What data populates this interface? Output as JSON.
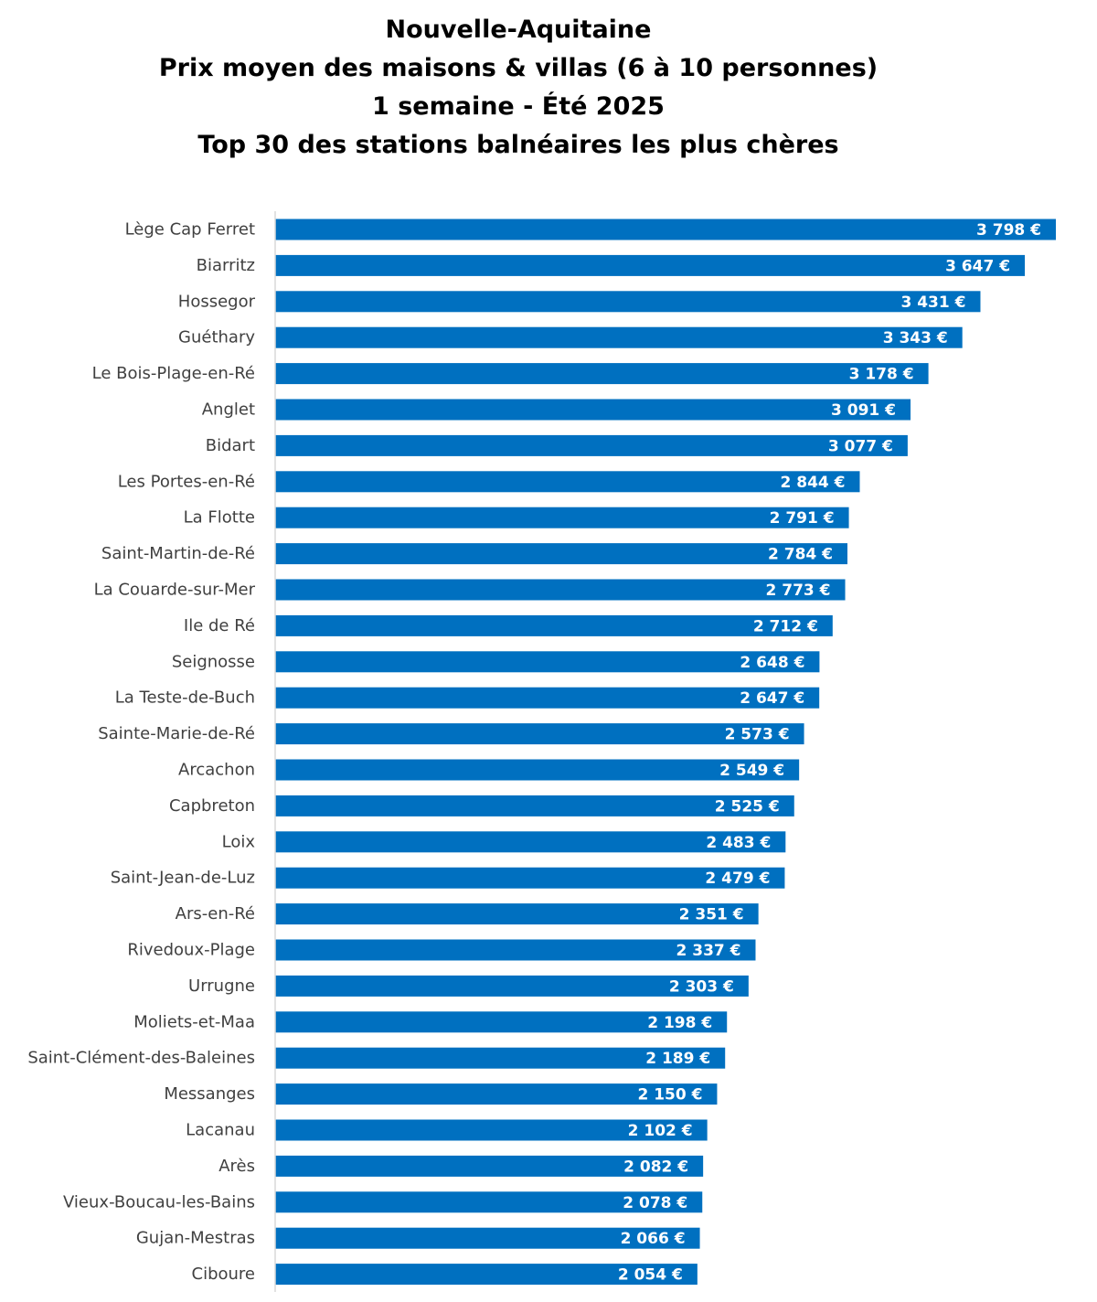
{
  "chart_data": {
    "type": "bar",
    "orientation": "horizontal",
    "title_lines": [
      "Nouvelle-Aquitaine",
      "Prix moyen des maisons & villas (6 à 10 personnes)",
      "1 semaine - Été 2025",
      "Top 30 des stations balnéaires les plus chères"
    ],
    "categories": [
      "Lège Cap Ferret",
      "Biarritz",
      "Hossegor",
      "Guéthary",
      "Le Bois-Plage-en-Ré",
      "Anglet",
      "Bidart",
      "Les Portes-en-Ré",
      "La Flotte",
      "Saint-Martin-de-Ré",
      "La Couarde-sur-Mer",
      "Ile de Ré",
      "Seignosse",
      "La Teste-de-Buch",
      "Sainte-Marie-de-Ré",
      "Arcachon",
      "Capbreton",
      "Loix",
      "Saint-Jean-de-Luz",
      "Ars-en-Ré",
      "Rivedoux-Plage",
      "Urrugne",
      "Moliets-et-Maa",
      "Saint-Clément-des-Baleines",
      "Messanges",
      "Lacanau",
      "Arès",
      "Vieux-Boucau-les-Bains",
      "Gujan-Mestras",
      "Ciboure"
    ],
    "values": [
      3798,
      3647,
      3431,
      3343,
      3178,
      3091,
      3077,
      2844,
      2791,
      2784,
      2773,
      2712,
      2648,
      2647,
      2573,
      2549,
      2525,
      2483,
      2479,
      2351,
      2337,
      2303,
      2198,
      2189,
      2150,
      2102,
      2082,
      2078,
      2066,
      2054
    ],
    "value_labels": [
      "3 798 €",
      "3 647 €",
      "3 431 €",
      "3 343 €",
      "3 178 €",
      "3 091 €",
      "3 077 €",
      "2 844 €",
      "2 791 €",
      "2 784 €",
      "2 773 €",
      "2 712 €",
      "2 648 €",
      "2 647 €",
      "2 573 €",
      "2 549 €",
      "2 525 €",
      "2 483 €",
      "2 479 €",
      "2 351 €",
      "2 337 €",
      "2 303 €",
      "2 198 €",
      "2 189 €",
      "2 150 €",
      "2 102 €",
      "2 082 €",
      "2 078 €",
      "2 066 €",
      "2 054 €"
    ],
    "xlim": [
      0,
      3798
    ],
    "grid": false,
    "legend": "none",
    "colors": {
      "bar": "#0070C0",
      "value_label": "#FFFFFF",
      "category_label": "#404040",
      "axis_line": "#D9D9D9",
      "title": "#000000"
    }
  }
}
